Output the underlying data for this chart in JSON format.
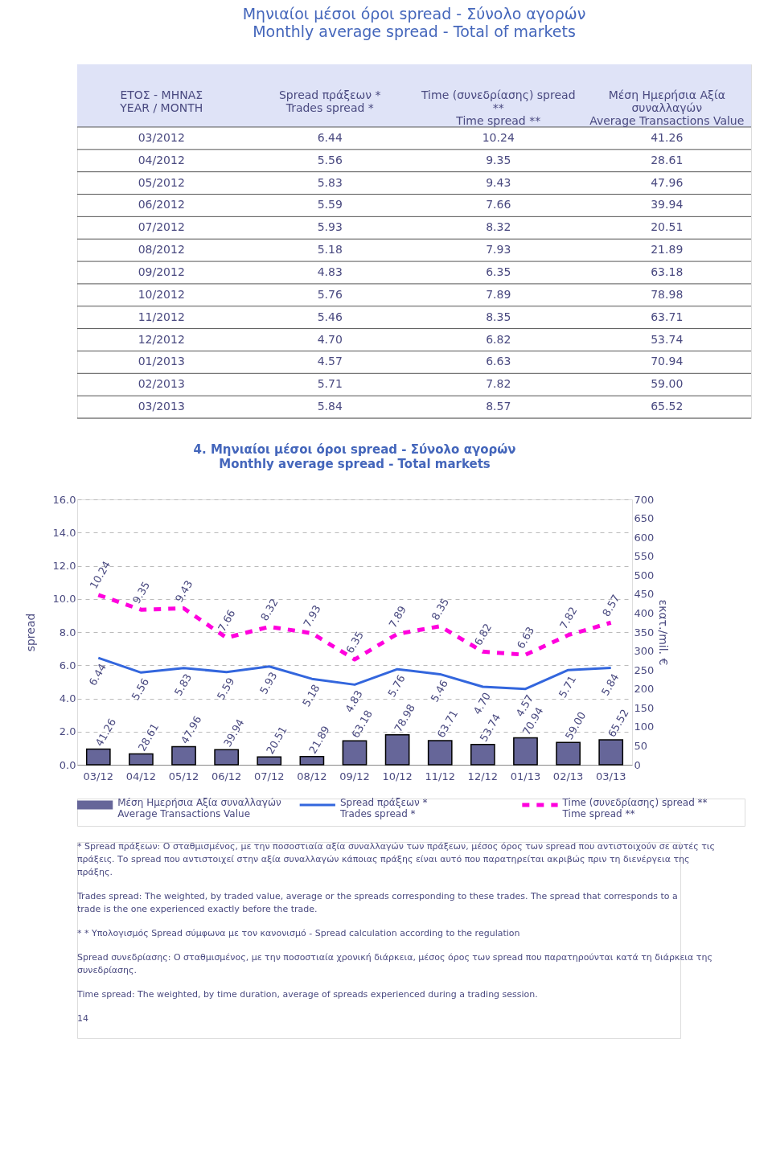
{
  "chart_data": [
    {
      "type": "other",
      "title": "Μηνιαίοι μέσοι όροι spread - Σύνολο αγορών",
      "subtitle": "Monthly average spread - Total of markets",
      "xlabel": "ΕΤΟΣ - ΜΗΝΑΣ\nYEAR / MONTH",
      "categories": [
        "03/2012",
        "04/2012",
        "05/2012",
        "06/2012",
        "07/2012",
        "08/2012",
        "09/2012",
        "10/2012",
        "11/2012",
        "12/2012",
        "01/2013",
        "02/2013",
        "03/2013"
      ],
      "series": [
        {
          "name": "Spread πράξεων *\nTrades spread *",
          "values": [
            6.44,
            5.56,
            5.83,
            5.59,
            5.93,
            5.18,
            4.83,
            5.76,
            5.46,
            4.7,
            4.57,
            5.71,
            5.84
          ],
          "value_labels": [
            "6.44",
            "5.56",
            "5.83",
            "5.59",
            "5.93",
            "5.18",
            "4.83",
            "5.76",
            "5.46",
            "4.70",
            "4.57",
            "5.71",
            "5.84"
          ]
        },
        {
          "name": "Time  (συνεδρίασης) spread\n**\nTime spread **",
          "values": [
            10.24,
            9.35,
            9.43,
            7.66,
            8.32,
            7.93,
            6.35,
            7.89,
            8.35,
            6.82,
            6.63,
            7.82,
            8.57
          ],
          "value_labels": [
            "10.24",
            "9.35",
            "9.43",
            "7.66",
            "8.32",
            "7.93",
            "6.35",
            "7.89",
            "8.35",
            "6.82",
            "6.63",
            "7.82",
            "8.57"
          ]
        },
        {
          "name": "Μέση Ημερήσια Αξία\nσυναλλαγών\nAverage Transactions Value",
          "values": [
            41.26,
            28.61,
            47.96,
            39.94,
            20.51,
            21.89,
            63.18,
            78.98,
            63.71,
            53.74,
            70.94,
            59.0,
            65.52
          ],
          "value_labels": [
            "41.26",
            "28.61",
            "47.96",
            "39.94",
            "20.51",
            "21.89",
            "63.18",
            "78.98",
            "63.71",
            "53.74",
            "70.94",
            "59.00",
            "65.52"
          ]
        }
      ]
    },
    {
      "type": "bar",
      "title": "4. Μηνιαίοι μέσοι όροι spread - Σύνολο αγορών",
      "subtitle": "Monthly average spread - Total markets",
      "categories": [
        "03/12",
        "04/12",
        "05/12",
        "06/12",
        "07/12",
        "08/12",
        "09/12",
        "10/12",
        "11/12",
        "12/12",
        "01/13",
        "02/13",
        "03/13"
      ],
      "series": [
        {
          "name": "Μέση Ημερήσια Αξία συναλλαγών\nAverage Transactions Value",
          "type": "bar",
          "axis": "y2",
          "color": "#666699",
          "values": [
            41.26,
            28.61,
            47.96,
            39.94,
            20.51,
            21.89,
            63.18,
            78.98,
            63.71,
            53.74,
            70.94,
            59.0,
            65.52
          ],
          "value_labels": [
            "41.26",
            "28.61",
            "47.96",
            "39.94",
            "20.51",
            "21.89",
            "63.18",
            "78.98",
            "63.71",
            "53.74",
            "70.94",
            "59.00",
            "65.52"
          ]
        },
        {
          "name": "Spread πράξεων *\nTrades spread *",
          "type": "line",
          "color": "#3366dd",
          "line_style": "solid",
          "values": [
            6.44,
            5.56,
            5.83,
            5.59,
            5.93,
            5.18,
            4.83,
            5.76,
            5.46,
            4.7,
            4.57,
            5.71,
            5.84
          ],
          "value_labels": [
            "6.44",
            "5.56",
            "5.83",
            "5.59",
            "5.93",
            "5.18",
            "4.83",
            "5.76",
            "5.46",
            "4.70",
            "4.57",
            "5.71",
            "5.84"
          ]
        },
        {
          "name": "Time  (συνεδρίασης) spread **\nTime spread **",
          "type": "line",
          "color": "#ff00dd",
          "line_style": "dashed",
          "values": [
            10.24,
            9.35,
            9.43,
            7.66,
            8.32,
            7.93,
            6.35,
            7.89,
            8.35,
            6.82,
            6.63,
            7.82,
            8.57
          ],
          "value_labels": [
            "10.24",
            "9.35",
            "9.43",
            "7.66",
            "8.32",
            "7.93",
            "6.35",
            "7.89",
            "8.35",
            "6.82",
            "6.63",
            "7.82",
            "8.57"
          ]
        }
      ],
      "ylabel": "spread",
      "y2label": "εκατ./mil. €",
      "ylim": [
        0,
        16
      ],
      "yticks": [
        {
          "value": 0,
          "label": "0.0"
        },
        {
          "value": 2,
          "label": "2.0"
        },
        {
          "value": 4,
          "label": "4.0"
        },
        {
          "value": 6,
          "label": "6.0"
        },
        {
          "value": 8,
          "label": "8.0"
        },
        {
          "value": 10,
          "label": "10.0"
        },
        {
          "value": 12,
          "label": "12.0"
        },
        {
          "value": 14,
          "label": "14.0"
        },
        {
          "value": 16,
          "label": "16.0"
        }
      ],
      "y2lim": [
        0,
        700
      ],
      "y2ticks": [
        0,
        50,
        100,
        150,
        200,
        250,
        300,
        350,
        400,
        450,
        500,
        550,
        600,
        650,
        700
      ],
      "grid": "y",
      "legend": "bottom",
      "annotations": [
        "* Spread πράξεων: Ο σταθμισμένος, με την ποσοστιαία αξία συναλλαγών των πράξεων, μέσος όρος των spread που αντιστοιχούν σε αυτές τις πράξεις. Το spread που αντιστοιχεί στην αξία συναλλαγών κάποιας πράξης είναι αυτό που παρατηρείται ακριβώς πριν τη διενέργεια της πράξης.",
        "Trades spread: The weighted, by traded value, average or the spreads corresponding to these trades. The spread that corresponds to a trade is the one experienced exactly before the trade.",
        "* * Υπολογισμός Spread σύμφωνα με τον κανονισμό - Spread calculation according to the regulation",
        "Spread συνεδρίασης: Ο σταθμισμένος, με την ποσοστιαία χρονική διάρκεια, μέσος όρος των spread που παρατηρούνται κατά τη διάρκεια της συνεδρίασης.",
        "Time spread: The weighted, by time duration, average of spreads experienced during a trading session.",
        "14"
      ]
    }
  ]
}
